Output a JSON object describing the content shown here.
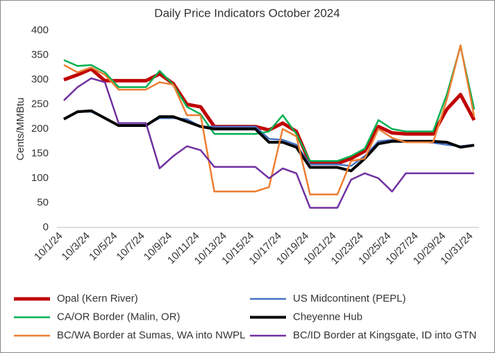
{
  "chart_data": {
    "type": "line",
    "title": "Daily Price Indicators October 2024",
    "y_label": "Cents/MMBtu",
    "categories": [
      "10/1/24",
      null,
      "10/3/24",
      null,
      "10/5/24",
      null,
      "10/7/24",
      null,
      "10/9/24",
      null,
      "10/11/24",
      null,
      "10/13/24",
      null,
      "10/15/24",
      null,
      "10/17/24",
      null,
      "10/19/24",
      null,
      "10/21/24",
      null,
      "10/23/24",
      null,
      "10/25/24",
      null,
      "10/27/24",
      null,
      "10/29/24",
      null,
      "10/31/24"
    ],
    "ylim": [
      0,
      400
    ],
    "yticks": [
      0,
      50,
      100,
      150,
      200,
      250,
      300,
      350,
      400
    ],
    "grid": false,
    "series": [
      {
        "name": "Opal (Kern River)",
        "color": "#c00000",
        "values": [
          300,
          310,
          322,
          298,
          298,
          298,
          298,
          312,
          292,
          250,
          245,
          205,
          205,
          205,
          205,
          198,
          212,
          195,
          130,
          130,
          130,
          140,
          155,
          205,
          192,
          190,
          190,
          190,
          240,
          270,
          218
        ]
      },
      {
        "name": "US Midcontinent (PEPL)",
        "color": "#4472c4",
        "values": [
          220,
          235,
          235,
          222,
          208,
          208,
          208,
          222,
          222,
          220,
          205,
          205,
          205,
          205,
          205,
          180,
          178,
          168,
          128,
          128,
          128,
          125,
          145,
          175,
          178,
          175,
          175,
          172,
          168,
          165,
          168
        ]
      },
      {
        "name": "CA/OR Border (Malin, OR)",
        "color": "#00b050",
        "values": [
          340,
          328,
          330,
          315,
          285,
          285,
          285,
          318,
          290,
          245,
          230,
          190,
          190,
          190,
          190,
          195,
          228,
          190,
          135,
          135,
          135,
          145,
          160,
          218,
          200,
          195,
          195,
          195,
          270,
          368,
          240
        ]
      },
      {
        "name": "Cheyenne Hub",
        "color": "#000000",
        "values": [
          220,
          235,
          237,
          222,
          207,
          207,
          207,
          225,
          225,
          215,
          205,
          200,
          200,
          200,
          200,
          173,
          173,
          163,
          122,
          122,
          122,
          115,
          140,
          170,
          175,
          175,
          175,
          175,
          173,
          163,
          167
        ]
      },
      {
        "name": "BC/WA Border at Sumas, WA into NWPL",
        "color": "#ed7d31",
        "values": [
          330,
          315,
          325,
          310,
          280,
          280,
          280,
          295,
          290,
          228,
          228,
          73,
          73,
          73,
          73,
          82,
          200,
          185,
          67,
          67,
          67,
          135,
          140,
          200,
          182,
          173,
          173,
          173,
          260,
          370,
          225
        ]
      },
      {
        "name": "BC/ID Border at Kingsgate, ID into GTN",
        "color": "#7030a0",
        "values": [
          258,
          285,
          303,
          295,
          212,
          212,
          212,
          120,
          145,
          165,
          157,
          123,
          123,
          123,
          123,
          100,
          120,
          110,
          40,
          40,
          40,
          97,
          110,
          100,
          73,
          110,
          110,
          110,
          110,
          110,
          110
        ]
      }
    ]
  }
}
